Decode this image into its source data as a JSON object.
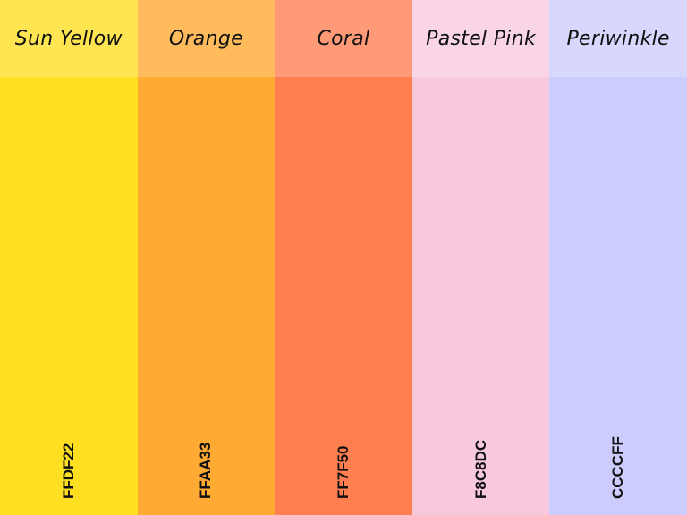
{
  "swatches": [
    {
      "name": "Sun Yellow",
      "hex": "FFDF22",
      "color": "#FFDF22",
      "header_color": "#FFE552"
    },
    {
      "name": "Orange",
      "hex": "FFAA33",
      "color": "#FFAA33",
      "header_color": "#FFBB5C"
    },
    {
      "name": "Coral",
      "hex": "FF7F50",
      "color": "#FF7F50",
      "header_color": "#FF9A78"
    },
    {
      "name": "Pastel Pink",
      "hex": "F8C8DC",
      "color": "#F8C8DC",
      "header_color": "#F9D5E6"
    },
    {
      "name": "Periwinkle",
      "hex": "CCCCFF",
      "color": "#CCCCFF",
      "header_color": "#D8D8FF"
    }
  ]
}
